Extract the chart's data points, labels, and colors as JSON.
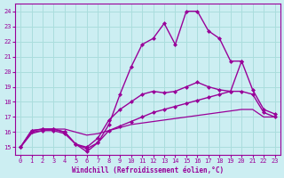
{
  "background_color": "#cceef2",
  "grid_color": "#aadddd",
  "line_color": "#990099",
  "xlabel": "Windchill (Refroidissement éolien,°C)",
  "xlim": [
    -0.5,
    23.5
  ],
  "ylim": [
    14.5,
    24.5
  ],
  "yticks": [
    15,
    16,
    17,
    18,
    19,
    20,
    21,
    22,
    23,
    24
  ],
  "xticks": [
    0,
    1,
    2,
    3,
    4,
    5,
    6,
    7,
    8,
    9,
    10,
    11,
    12,
    13,
    14,
    15,
    16,
    17,
    18,
    19,
    20,
    21,
    22,
    23
  ],
  "series": [
    {
      "x": [
        0,
        1,
        2,
        3,
        4,
        5,
        6,
        7,
        8,
        9,
        10,
        11,
        12,
        13,
        14,
        15,
        16,
        17,
        18,
        19,
        20,
        21,
        22,
        23
      ],
      "y": [
        15.0,
        15.9,
        16.1,
        16.2,
        16.2,
        16.0,
        15.8,
        15.9,
        16.1,
        16.3,
        16.5,
        16.6,
        16.7,
        16.8,
        16.9,
        17.0,
        17.1,
        17.2,
        17.3,
        17.4,
        17.5,
        17.5,
        17.0,
        17.0
      ],
      "marker": null,
      "linewidth": 0.9,
      "markersize": 0
    },
    {
      "x": [
        0,
        1,
        2,
        3,
        4,
        5,
        6,
        7,
        8,
        9,
        10,
        11,
        12,
        13,
        14,
        15,
        16,
        17,
        18,
        19,
        20,
        21,
        22,
        23
      ],
      "y": [
        15.0,
        16.0,
        16.1,
        16.1,
        15.9,
        15.2,
        14.9,
        15.3,
        16.1,
        16.4,
        16.7,
        17.0,
        17.3,
        17.5,
        17.7,
        17.9,
        18.1,
        18.3,
        18.5,
        18.7,
        18.7,
        18.5,
        17.3,
        17.0
      ],
      "marker": "D",
      "linewidth": 1.0,
      "markersize": 2.0
    },
    {
      "x": [
        0,
        1,
        2,
        3,
        4,
        5,
        6,
        7,
        8,
        9,
        10,
        11,
        12,
        13,
        14,
        15,
        16,
        17,
        18,
        19,
        20,
        21,
        22,
        23
      ],
      "y": [
        15.0,
        16.1,
        16.2,
        16.2,
        16.0,
        15.2,
        15.0,
        15.6,
        16.8,
        17.5,
        18.0,
        18.5,
        18.7,
        18.6,
        18.7,
        19.0,
        19.3,
        19.0,
        18.8,
        18.7,
        20.7,
        18.8,
        17.5,
        17.2
      ],
      "marker": "D",
      "linewidth": 1.0,
      "markersize": 2.0
    },
    {
      "x": [
        0,
        1,
        2,
        3,
        4,
        5,
        6,
        7,
        8,
        9,
        10,
        11,
        12,
        13,
        14,
        15,
        16,
        17,
        18,
        19,
        20
      ],
      "y": [
        15.0,
        16.1,
        16.2,
        16.2,
        16.0,
        15.2,
        14.7,
        15.3,
        16.5,
        18.5,
        20.3,
        21.8,
        22.2,
        23.2,
        21.8,
        24.0,
        24.0,
        22.7,
        22.2,
        20.7,
        20.7
      ],
      "marker": "D",
      "linewidth": 1.0,
      "markersize": 2.0
    }
  ]
}
